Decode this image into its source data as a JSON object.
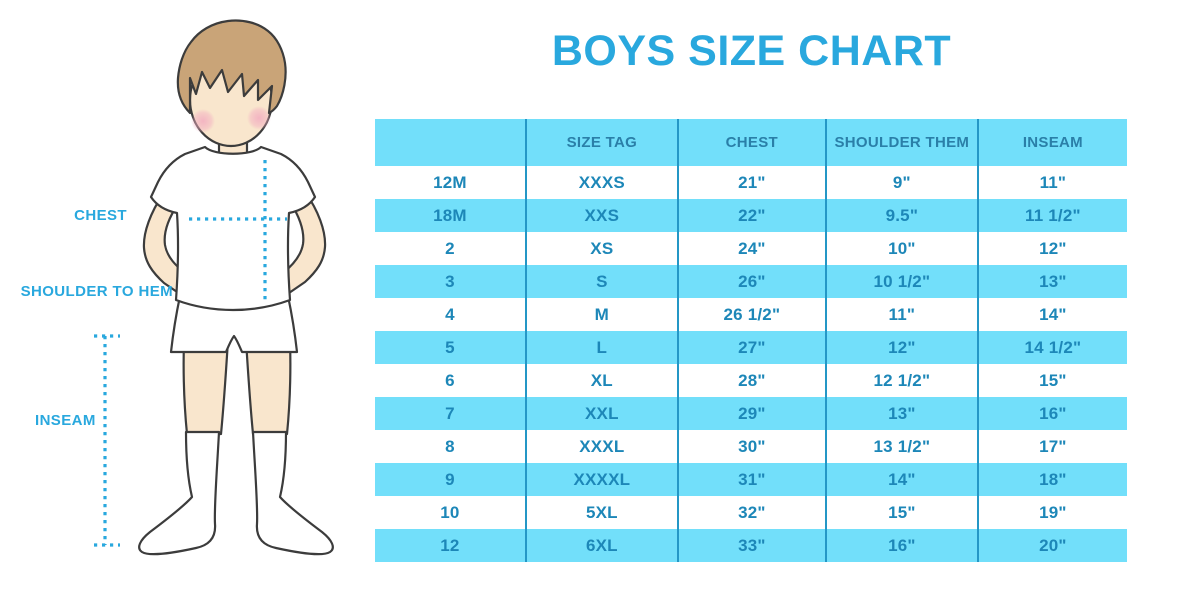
{
  "title": "BOYS SIZE CHART",
  "diagram": {
    "figure": "boy-mannequin-illustration",
    "labels": {
      "chest": "CHEST",
      "shoulder_to_hem": "SHOULDER TO HEM",
      "inseam": "INSEAM"
    }
  },
  "chart_data": {
    "type": "table",
    "title": "BOYS SIZE CHART",
    "columns": [
      "",
      "SIZE TAG",
      "CHEST",
      "SHOULDER THEM",
      "INSEAM"
    ],
    "rows": [
      [
        "12M",
        "XXXS",
        "21\"",
        "9\"",
        "11\""
      ],
      [
        "18M",
        "XXS",
        "22\"",
        "9.5\"",
        "11 1/2\""
      ],
      [
        "2",
        "XS",
        "24\"",
        "10\"",
        "12\""
      ],
      [
        "3",
        "S",
        "26\"",
        "10 1/2\"",
        "13\""
      ],
      [
        "4",
        "M",
        "26 1/2\"",
        "11\"",
        "14\""
      ],
      [
        "5",
        "L",
        "27\"",
        "12\"",
        "14 1/2\""
      ],
      [
        "6",
        "XL",
        "28\"",
        "12 1/2\"",
        "15\""
      ],
      [
        "7",
        "XXL",
        "29\"",
        "13\"",
        "16\""
      ],
      [
        "8",
        "XXXL",
        "30\"",
        "13 1/2\"",
        "17\""
      ],
      [
        "9",
        "XXXXL",
        "31\"",
        "14\"",
        "18\""
      ],
      [
        "10",
        "5XL",
        "32\"",
        "15\"",
        "19\""
      ],
      [
        "12",
        "6XL",
        "33\"",
        "16\"",
        "20\""
      ]
    ],
    "layout": {
      "header_fill": "light-blue",
      "body": "alternating white / light-blue rows",
      "grid": "vertical column dividers only"
    }
  },
  "colors": {
    "accent_blue": "#29A8DE",
    "table_row_blue": "#72DFFA",
    "table_text_blue": "#1D87B8",
    "table_header_text_blue": "#2A7FA8",
    "table_divider_blue": "#2497C6",
    "skin": "#F9E6CD",
    "hair_brown": "#C9A478",
    "outline": "#3C3C3C",
    "cheek_pink": "#F2ACC0"
  }
}
